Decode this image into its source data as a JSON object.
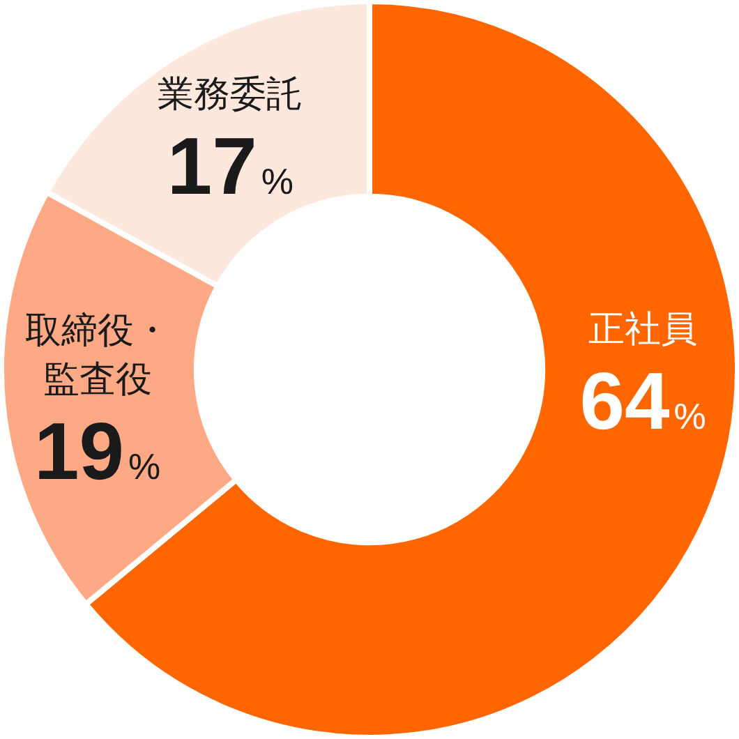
{
  "chart_data": {
    "type": "donut",
    "categories": [
      "正社員",
      "取締役・監査役",
      "業務委託"
    ],
    "values": [
      64,
      19,
      17
    ],
    "colors": [
      "#ff6600",
      "#fea986",
      "#fde8de"
    ],
    "value_labels": [
      "64%",
      "19%",
      "17%"
    ]
  }
}
